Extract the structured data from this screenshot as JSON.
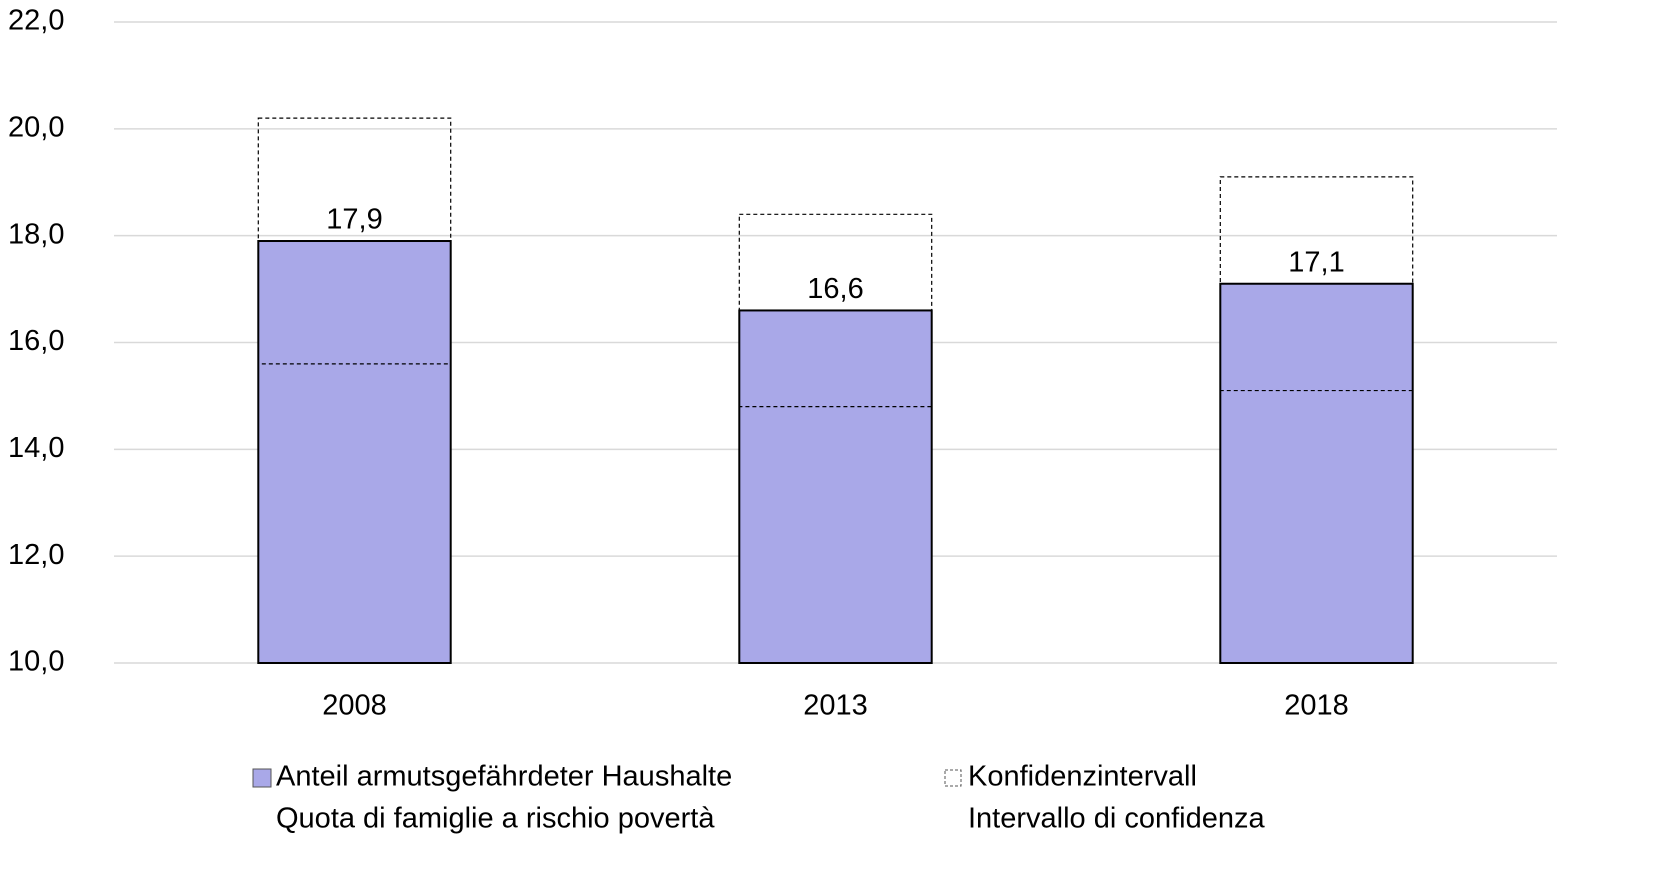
{
  "chart_data": {
    "type": "bar",
    "categories": [
      "2008",
      "2013",
      "2018"
    ],
    "series": [
      {
        "name": [
          "Anteil armutsgefährdeter Haushalte",
          "Quota di famiglie a rischio povertà"
        ],
        "color": "#a9a8e8",
        "values": [
          17.9,
          16.6,
          17.1
        ],
        "value_labels": [
          "17,9",
          "16,6",
          "17,1"
        ]
      }
    ],
    "confidence_interval": {
      "name": [
        "Konfidenzintervall",
        "Intervallo di confidenza"
      ],
      "lower": [
        15.6,
        14.8,
        15.1
      ],
      "upper": [
        20.2,
        18.4,
        19.1
      ]
    },
    "ylim": [
      10,
      22
    ],
    "yticks": [
      {
        "value": 10,
        "label": "10,0"
      },
      {
        "value": 12,
        "label": "12,0"
      },
      {
        "value": 14,
        "label": "14,0"
      },
      {
        "value": 16,
        "label": "16,0"
      },
      {
        "value": 18,
        "label": "18,0"
      },
      {
        "value": 20,
        "label": "20,0"
      },
      {
        "value": 22,
        "label": "22,0"
      }
    ],
    "grid": true
  }
}
